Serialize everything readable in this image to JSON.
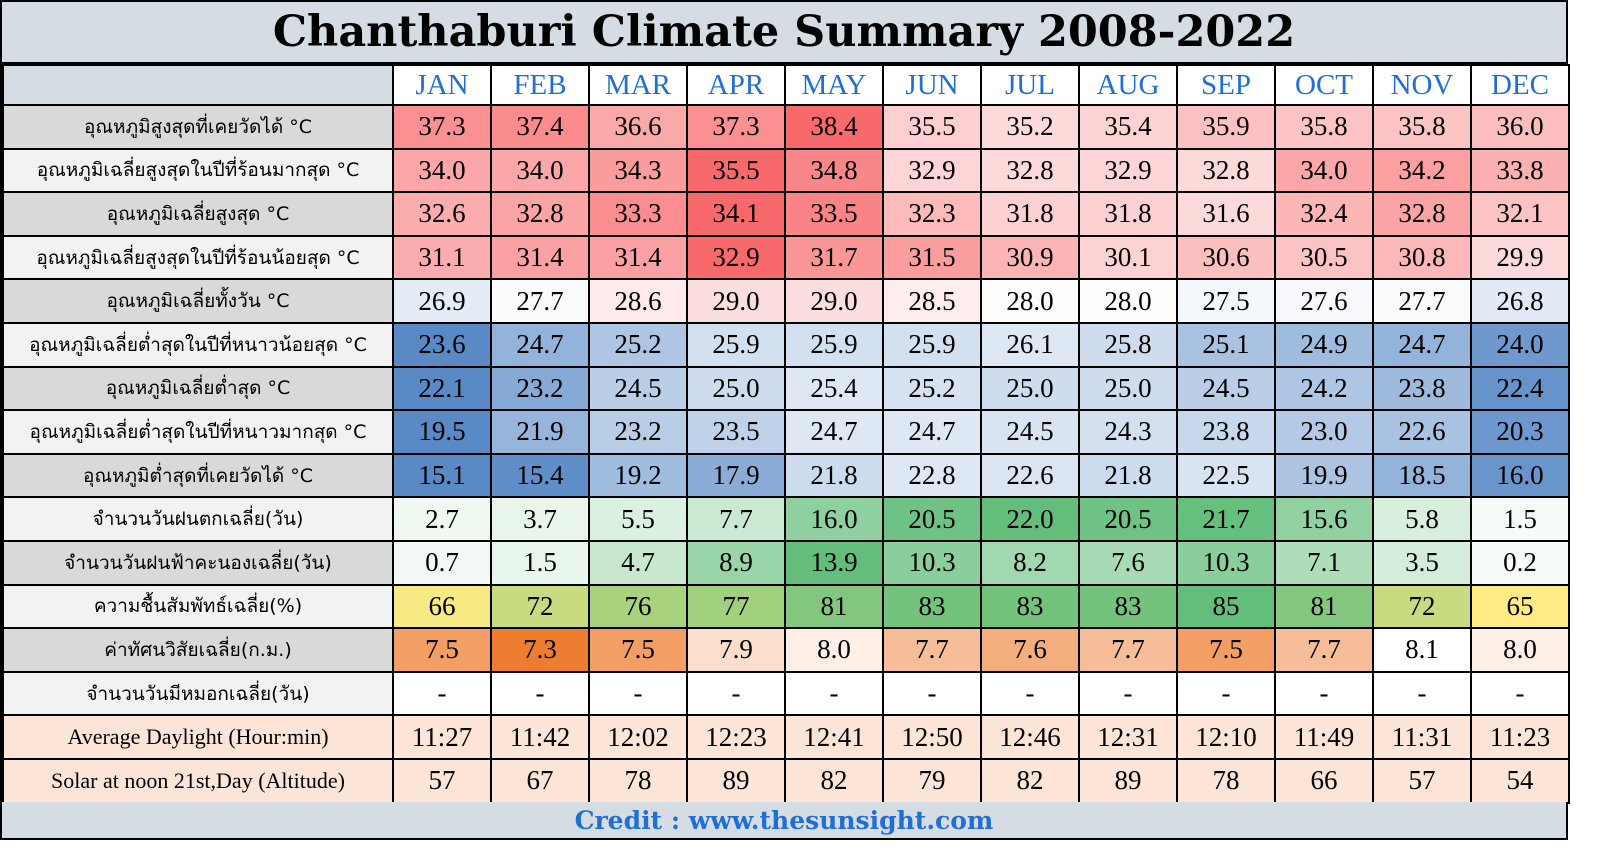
{
  "title": "Chanthaburi Climate Summary 2008-2022",
  "credit": "Credit : www.thesunsight.com",
  "colors": {
    "month_header_text": "#1f6fd6",
    "credit_text": "#1f6fd6",
    "frame_background": "#d6dce4",
    "hot_scale": "#f8696b",
    "cold_scale": "#5a8ac6",
    "rain_scale": "#63be7b",
    "humidity_low": "#ffeb84",
    "visibility_low": "#ed7d31"
  },
  "chart_data": {
    "type": "table",
    "title": "Chanthaburi Climate Summary 2008-2022",
    "columns": [
      "JAN",
      "FEB",
      "MAR",
      "APR",
      "MAY",
      "JUN",
      "JUL",
      "AUG",
      "SEP",
      "OCT",
      "NOV",
      "DEC"
    ],
    "rows": [
      {
        "label": "อุณหภูมิสูงสุดที่เคยวัดได้ °C",
        "label_bg": "#d9d9d9",
        "scale": "hot",
        "values": [
          "37.3",
          "37.4",
          "36.6",
          "37.3",
          "38.4",
          "35.5",
          "35.2",
          "35.4",
          "35.9",
          "35.8",
          "35.8",
          "36.0"
        ]
      },
      {
        "label": "อุณหภูมิเฉลี่ยสูงสุดในปีที่ร้อนมากสุด °C",
        "label_bg": "#f2f2f2",
        "scale": "hot",
        "values": [
          "34.0",
          "34.0",
          "34.3",
          "35.5",
          "34.8",
          "32.9",
          "32.8",
          "32.9",
          "32.8",
          "34.0",
          "34.2",
          "33.8"
        ]
      },
      {
        "label": "อุณหภูมิเฉลี่ยสูงสุด °C",
        "label_bg": "#d9d9d9",
        "scale": "hot",
        "values": [
          "32.6",
          "32.8",
          "33.3",
          "34.1",
          "33.5",
          "32.3",
          "31.8",
          "31.8",
          "31.6",
          "32.4",
          "32.8",
          "32.1"
        ]
      },
      {
        "label": "อุณหภูมิเฉลี่ยสูงสุดในปีที่ร้อนน้อยสุด °C",
        "label_bg": "#f2f2f2",
        "scale": "hot",
        "values": [
          "31.1",
          "31.4",
          "31.4",
          "32.9",
          "31.7",
          "31.5",
          "30.9",
          "30.1",
          "30.6",
          "30.5",
          "30.8",
          "29.9"
        ]
      },
      {
        "label": "อุณหภูมิเฉลี่ยทั้งวัน °C",
        "label_bg": "#d9d9d9",
        "scale": "daily",
        "values": [
          "26.9",
          "27.7",
          "28.6",
          "29.0",
          "29.0",
          "28.5",
          "28.0",
          "28.0",
          "27.5",
          "27.6",
          "27.7",
          "26.8"
        ]
      },
      {
        "label": "อุณหภูมิเฉลี่ยต่ำสุดในปีที่หนาวน้อยสุด °C",
        "label_bg": "#f2f2f2",
        "scale": "cold",
        "values": [
          "23.6",
          "24.7",
          "25.2",
          "25.9",
          "25.9",
          "25.9",
          "26.1",
          "25.8",
          "25.1",
          "24.9",
          "24.7",
          "24.0"
        ]
      },
      {
        "label": "อุณหภูมิเฉลี่ยต่ำสุด °C",
        "label_bg": "#d9d9d9",
        "scale": "cold",
        "values": [
          "22.1",
          "23.2",
          "24.5",
          "25.0",
          "25.4",
          "25.2",
          "25.0",
          "25.0",
          "24.5",
          "24.2",
          "23.8",
          "22.4"
        ]
      },
      {
        "label": "อุณหภูมิเฉลี่ยต่ำสุดในปีที่หนาวมากสุด °C",
        "label_bg": "#f2f2f2",
        "scale": "cold",
        "values": [
          "19.5",
          "21.9",
          "23.2",
          "23.5",
          "24.7",
          "24.7",
          "24.5",
          "24.3",
          "23.8",
          "23.0",
          "22.6",
          "20.3"
        ]
      },
      {
        "label": "อุณหภูมิต่ำสุดที่เคยวัดได้ °C",
        "label_bg": "#d9d9d9",
        "scale": "cold",
        "values": [
          "15.1",
          "15.4",
          "19.2",
          "17.9",
          "21.8",
          "22.8",
          "22.6",
          "21.8",
          "22.5",
          "19.9",
          "18.5",
          "16.0"
        ]
      },
      {
        "label": "จำนวนวันฝนตกเฉลี่ย(วัน)",
        "label_bg": "#f2f2f2",
        "scale": "rain",
        "values": [
          "2.7",
          "3.7",
          "5.5",
          "7.7",
          "16.0",
          "20.5",
          "22.0",
          "20.5",
          "21.7",
          "15.6",
          "5.8",
          "1.5"
        ]
      },
      {
        "label": "จำนวนวันฝนฟ้าคะนองเฉลี่ย(วัน)",
        "label_bg": "#d9d9d9",
        "scale": "rain",
        "values": [
          "0.7",
          "1.5",
          "4.7",
          "8.9",
          "13.9",
          "10.3",
          "8.2",
          "7.6",
          "10.3",
          "7.1",
          "3.5",
          "0.2"
        ]
      },
      {
        "label": "ความชื้นสัมพัทธ์เฉลี่ย(%)",
        "label_bg": "#f2f2f2",
        "scale": "humidity",
        "values": [
          "66",
          "72",
          "76",
          "77",
          "81",
          "83",
          "83",
          "83",
          "85",
          "81",
          "72",
          "65"
        ]
      },
      {
        "label": "ค่าทัศนวิสัยเฉลี่ย(ก.ม.)",
        "label_bg": "#d9d9d9",
        "scale": "visibility",
        "values": [
          "7.5",
          "7.3",
          "7.5",
          "7.9",
          "8.0",
          "7.7",
          "7.6",
          "7.7",
          "7.5",
          "7.7",
          "8.1",
          "8.0"
        ]
      },
      {
        "label": "จำนวนวันมีหมอกเฉลี่ย(วัน)",
        "label_bg": "#f2f2f2",
        "scale": "none",
        "values": [
          "-",
          "-",
          "-",
          "-",
          "-",
          "-",
          "-",
          "-",
          "-",
          "-",
          "-",
          "-"
        ]
      },
      {
        "label": "Average Daylight (Hour:min)",
        "label_bg": "#fce4d6",
        "scale": "peach",
        "en": true,
        "values": [
          "11:27",
          "11:42",
          "12:02",
          "12:23",
          "12:41",
          "12:50",
          "12:46",
          "12:31",
          "12:10",
          "11:49",
          "11:31",
          "11:23"
        ]
      },
      {
        "label": "Solar at noon 21st,Day (Altitude)",
        "label_bg": "#fce4d6",
        "scale": "peach",
        "en": true,
        "values": [
          "57",
          "67",
          "78",
          "89",
          "82",
          "79",
          "82",
          "89",
          "78",
          "66",
          "57",
          "54"
        ]
      }
    ]
  }
}
